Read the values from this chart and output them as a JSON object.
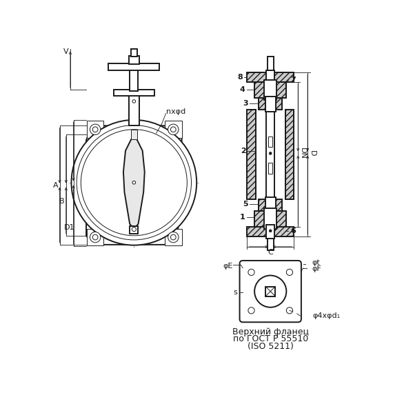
{
  "bg_color": "#ffffff",
  "line_color": "#1a1a1a",
  "figsize": [
    5.7,
    5.7
  ],
  "dpi": 100,
  "labels": {
    "V": "V",
    "A": "A",
    "B": "B",
    "D1": "D1",
    "nxd": "nxφd",
    "DN": "DN",
    "D": "D",
    "C": "C",
    "phiE": "φE",
    "phiF": "φF",
    "phit": "φt",
    "s": "s",
    "phi4xd": "φ4xφd₁",
    "caption1": "Верхний фланец",
    "caption2": "по ГОСТ Р 55510",
    "caption3": "(ISO 5211)"
  }
}
